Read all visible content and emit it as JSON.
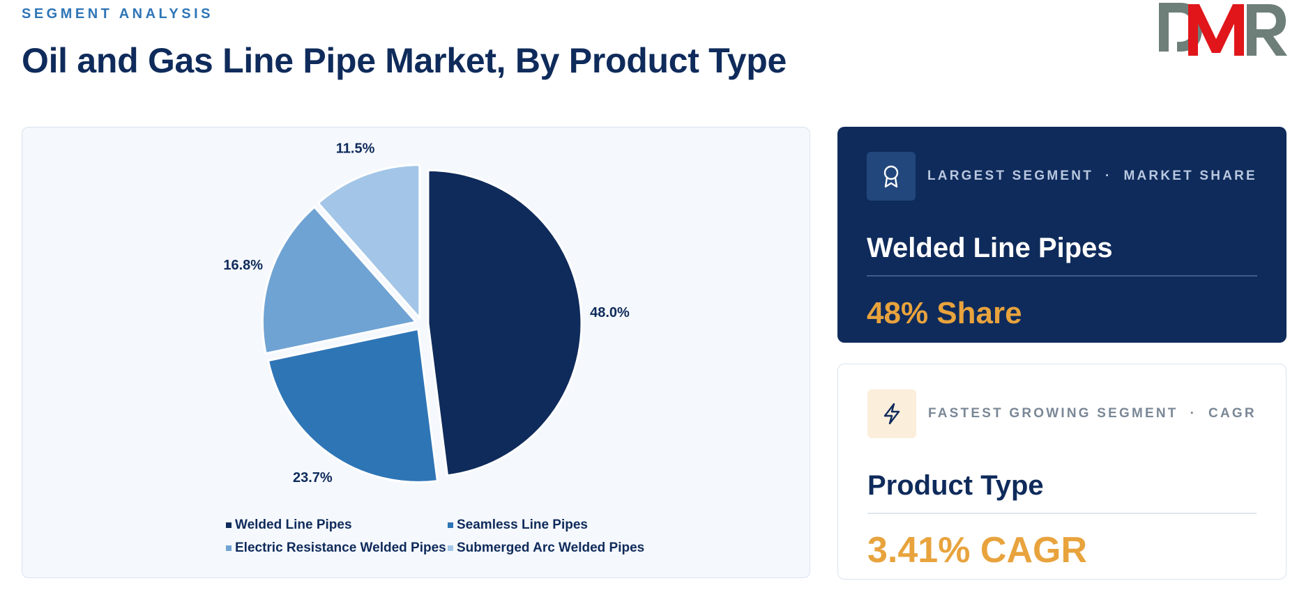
{
  "header": {
    "eyebrow": "SEGMENT ANALYSIS",
    "title": "Oil and Gas Line Pipe Market, By Product Type",
    "logo_text": "DMR"
  },
  "chart_data": {
    "type": "pie",
    "title": "",
    "categories": [
      "Welded Line Pipes",
      "Seamless Line Pipes",
      "Electric Resistance Welded Pipes",
      "Submerged Arc Welded Pipes"
    ],
    "values": [
      48.0,
      23.7,
      16.8,
      11.5
    ],
    "labels": [
      "48.0%",
      "23.7%",
      "16.8%",
      "11.5%"
    ],
    "colors": [
      "#0f2b5b",
      "#2e75b6",
      "#6fa3d3",
      "#a3c6e8"
    ],
    "legend_position": "bottom",
    "exploded": true
  },
  "cards": {
    "largest": {
      "kicker": "LARGEST SEGMENT  ·  MARKET SHARE",
      "heading": "Welded Line Pipes",
      "value": "48% Share",
      "icon": "award-icon"
    },
    "fastest": {
      "kicker": "FASTEST GROWING SEGMENT  ·  CAGR",
      "heading": "Product Type",
      "value": "3.41% CAGR",
      "icon": "lightning-icon"
    }
  },
  "colors": {
    "navy": "#0f2b5b",
    "accent": "#e8a33d",
    "logo_gray": "#6e7f7a",
    "logo_red": "#e0161b"
  }
}
